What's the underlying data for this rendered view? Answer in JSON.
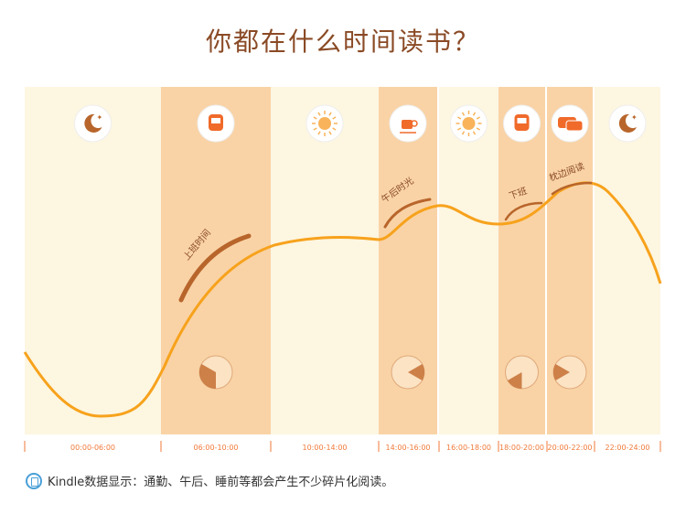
{
  "title": "你都在什么时间读书？",
  "colors": {
    "light": "#fdf6e1",
    "dark": "#f9d3a6",
    "curve": "#f7a21c",
    "arrow": "#b8652b",
    "label": "#f07a3a",
    "icon": "#f06a2a"
  },
  "periods": [
    {
      "label": "00:00-06:00",
      "shade": "light",
      "icon": "moon-icon"
    },
    {
      "label": "06:00-10:00",
      "shade": "dark",
      "icon": "bus-icon",
      "annotation": "上班时间",
      "clock": [
        6,
        10
      ]
    },
    {
      "label": "10:00-14:00",
      "shade": "light",
      "icon": "sun-icon"
    },
    {
      "label": "14:00-16:00",
      "shade": "dark",
      "icon": "coffee-icon",
      "annotation": "午后时光",
      "clock": [
        14,
        16
      ]
    },
    {
      "label": "16:00-18:00",
      "shade": "light",
      "icon": "sun-icon"
    },
    {
      "label": "18:00-20:00",
      "shade": "dark",
      "icon": "bus-icon",
      "annotation": "下班",
      "clock": [
        18,
        20
      ]
    },
    {
      "label": "20:00-22:00",
      "shade": "dark",
      "icon": "pillow-icon",
      "annotation": "枕边阅读",
      "clock": [
        20,
        22
      ]
    },
    {
      "label": "22:00-24:00",
      "shade": "light",
      "icon": "moon-icon"
    }
  ],
  "footer": {
    "text": "Kindle数据显示：通勤、午后、睡前等都会产生不少碎片化阅读。"
  }
}
